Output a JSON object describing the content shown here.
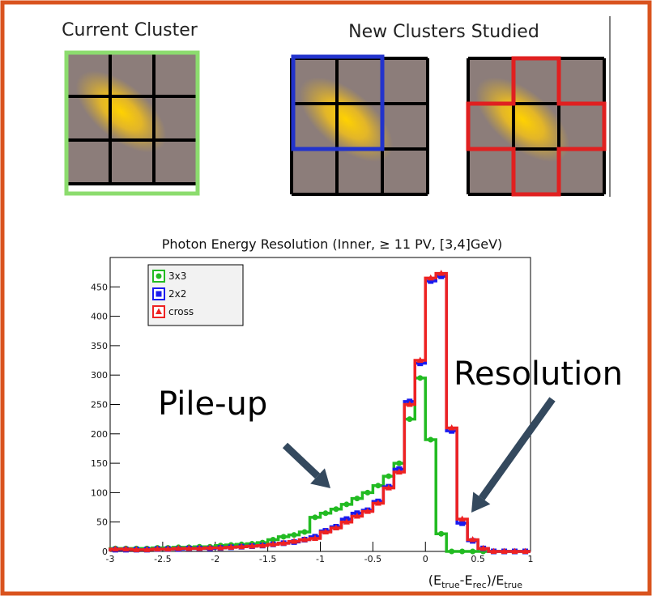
{
  "slide": {
    "label_current": "Current Cluster",
    "label_new": "New Clusters Studied"
  },
  "chart_data": {
    "type": "histogram",
    "title": "Photon Energy Resolution (Inner, ≥ 11 PV, [3,4]GeV)",
    "x_label_parts": [
      "(E",
      "true",
      "-E",
      "rec",
      ")/E",
      "true"
    ],
    "annotations": [
      "Pile-up",
      "Resolution"
    ],
    "bins": [
      -3,
      -2.9,
      -2.8,
      -2.7,
      -2.6,
      -2.5,
      -2.4,
      -2.3,
      -2.2,
      -2.1,
      -2,
      -1.9,
      -1.8,
      -1.7,
      -1.6,
      -1.5,
      -1.4,
      -1.3,
      -1.2,
      -1.1,
      -1,
      -0.9,
      -0.8,
      -0.7,
      -0.6,
      -0.5,
      -0.4,
      -0.3,
      -0.2,
      -0.1,
      0,
      0.1,
      0.2,
      0.3,
      0.4,
      0.5,
      0.6,
      0.7,
      0.8,
      0.9,
      1
    ],
    "series": [
      {
        "name": "3x3",
        "color": "#22bb22",
        "marker": "circle",
        "values": [
          5,
          5,
          5,
          5,
          6,
          6,
          7,
          7,
          8,
          8,
          10,
          11,
          12,
          13,
          15,
          20,
          25,
          28,
          33,
          58,
          65,
          72,
          80,
          90,
          100,
          112,
          128,
          150,
          225,
          295,
          190,
          30,
          0,
          0,
          0,
          0,
          0,
          0,
          0,
          0
        ]
      },
      {
        "name": "2x2",
        "color": "#1a1aee",
        "marker": "square",
        "values": [
          3,
          3,
          3,
          3,
          4,
          4,
          4,
          5,
          5,
          5,
          6,
          7,
          8,
          9,
          10,
          12,
          14,
          16,
          20,
          25,
          35,
          42,
          55,
          65,
          70,
          85,
          110,
          140,
          255,
          320,
          460,
          468,
          205,
          48,
          18,
          5,
          0,
          0,
          0,
          0
        ]
      },
      {
        "name": "cross",
        "color": "#ee2222",
        "marker": "triangle",
        "values": [
          4,
          4,
          3,
          3,
          4,
          4,
          5,
          5,
          5,
          6,
          6,
          7,
          8,
          9,
          10,
          12,
          14,
          17,
          20,
          22,
          33,
          40,
          50,
          60,
          68,
          82,
          108,
          135,
          250,
          325,
          465,
          473,
          210,
          55,
          20,
          5,
          0,
          0,
          0,
          0
        ]
      }
    ],
    "xlim": [
      -3,
      1
    ],
    "xticks": [
      -3,
      -2.5,
      -2,
      -1.5,
      -1,
      -0.5,
      0,
      0.5,
      1
    ],
    "ylim": [
      0,
      500
    ],
    "yticks": [
      0,
      50,
      100,
      150,
      200,
      250,
      300,
      350,
      400,
      450
    ],
    "legend": "top-left"
  }
}
